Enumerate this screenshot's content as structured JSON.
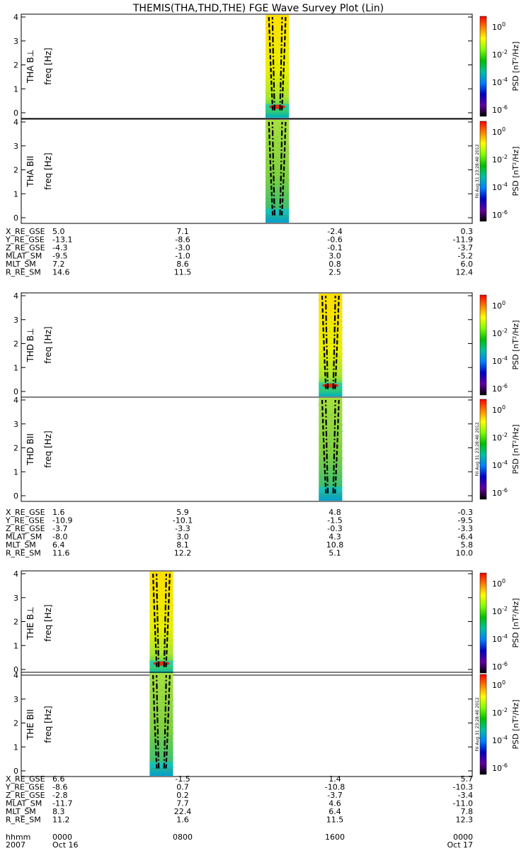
{
  "title": "THEMIS(THA,THD,THE) FGE Wave Survey Plot (Lin)",
  "timestamp": "Fri Aug 31 23:28:40 2012",
  "colorbar_label": "PSD [nT²/Hz]",
  "colorbar_ticks": [
    "10^0",
    "10^-2",
    "10^-4",
    "10^-6"
  ],
  "colorbar_colors": [
    "#ff0000",
    "#ff8000",
    "#ffff00",
    "#80ff00",
    "#00c000",
    "#00c0a0",
    "#0080ff",
    "#0000c0",
    "#6000a0",
    "#000000"
  ],
  "freq_label": "freq [Hz]",
  "y_ticks": [
    "0",
    "1",
    "2",
    "3",
    "4"
  ],
  "chart_data": {
    "type": "heatmap",
    "x_range": [
      "2007-10-16 00:00",
      "2007-10-17 00:00"
    ],
    "y_range_hz": [
      0,
      4
    ],
    "grid": false,
    "probes": [
      {
        "name": "THA",
        "panels": [
          {
            "label": "THA B⊥",
            "data_start": "2007-10-16 13:00",
            "data_end": "2007-10-16 14:15"
          },
          {
            "label": "THA BII",
            "data_start": "2007-10-16 13:00",
            "data_end": "2007-10-16 14:15"
          }
        ],
        "ephemeris": {
          "rows": [
            "X_RE_GSE",
            "Y_RE_GSE",
            "Z_RE_GSE",
            "MLAT_SM",
            "MLT_SM",
            "R_RE_SM"
          ],
          "values": [
            [
              "5.0",
              "7.1",
              "-2.4",
              "0.3"
            ],
            [
              "-13.1",
              "-8.6",
              "-0.6",
              "-11.9"
            ],
            [
              "-4.3",
              "-3.0",
              "-0.1",
              "-3.7"
            ],
            [
              "-9.5",
              "-1.0",
              "3.0",
              "-5.2"
            ],
            [
              "7.2",
              "8.6",
              "0.8",
              "6.0"
            ],
            [
              "14.6",
              "11.5",
              "2.5",
              "12.4"
            ]
          ]
        }
      },
      {
        "name": "THD",
        "panels": [
          {
            "label": "THD B⊥",
            "data_start": "2007-10-16 15:50",
            "data_end": "2007-10-16 17:05"
          },
          {
            "label": "THD BII",
            "data_start": "2007-10-16 15:50",
            "data_end": "2007-10-16 17:05"
          }
        ],
        "ephemeris": {
          "rows": [
            "X_RE_GSE",
            "Y_RE_GSE",
            "Z_RE_GSE",
            "MLAT_SM",
            "MLT_SM",
            "R_RE_SM"
          ],
          "values": [
            [
              "1.6",
              "5.9",
              "4.8",
              "-0.3"
            ],
            [
              "-10.9",
              "-10.1",
              "-1.5",
              "-9.5"
            ],
            [
              "-3.7",
              "-3.3",
              "-0.3",
              "-3.3"
            ],
            [
              "-8.0",
              "3.0",
              "4.3",
              "-6.4"
            ],
            [
              "6.4",
              "8.1",
              "10.8",
              "5.8"
            ],
            [
              "11.6",
              "12.2",
              "5.1",
              "10.0"
            ]
          ]
        }
      },
      {
        "name": "THE",
        "panels": [
          {
            "label": "THE B⊥",
            "data_start": "2007-10-16 06:50",
            "data_end": "2007-10-16 08:05"
          },
          {
            "label": "THE BII",
            "data_start": "2007-10-16 06:50",
            "data_end": "2007-10-16 08:05"
          }
        ],
        "ephemeris": {
          "rows": [
            "X_RE_GSE",
            "Y_RE_GSE",
            "Z_RE_GSE",
            "MLAT_SM",
            "MLT_SM",
            "R_RE_SM"
          ],
          "values": [
            [
              "6.6",
              "-1.5",
              "1.4",
              "5.7"
            ],
            [
              "-8.6",
              "0.7",
              "-10.8",
              "-10.3"
            ],
            [
              "-2.8",
              "0.2",
              "-3.7",
              "-3.4"
            ],
            [
              "-11.7",
              "7.7",
              "4.6",
              "-11.0"
            ],
            [
              "8.3",
              "22.4",
              "6.4",
              "7.8"
            ],
            [
              "11.2",
              "1.6",
              "11.5",
              "12.3"
            ]
          ]
        }
      }
    ],
    "time_axis": {
      "rows": [
        "hhmm",
        "2007"
      ],
      "values": [
        [
          "0000",
          "0800",
          "1600",
          "0000"
        ],
        [
          "Oct 16",
          "",
          "",
          "Oct 17"
        ]
      ]
    }
  }
}
